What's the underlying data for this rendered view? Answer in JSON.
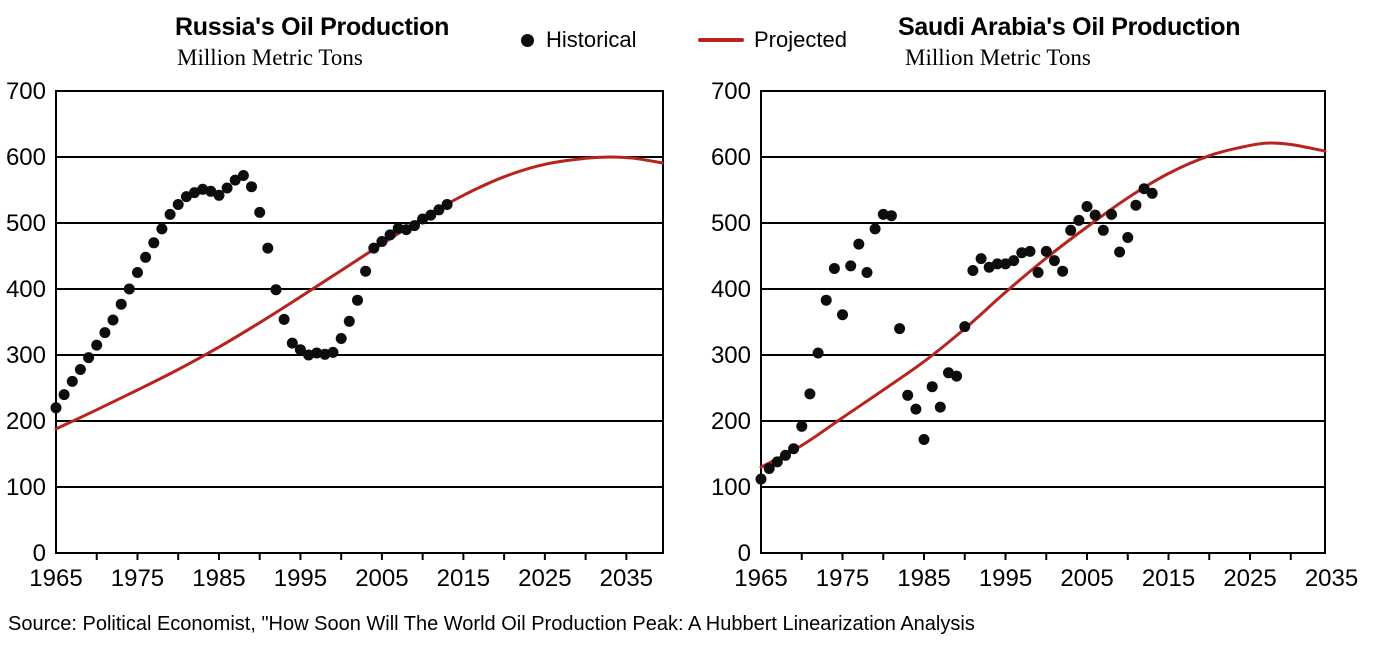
{
  "legend": {
    "historical_label": "Historical",
    "projected_label": "Projected"
  },
  "footer": {
    "source_text": "Source: Political Economist, \"How Soon Will The World Oil Production Peak: A Hubbert Linearization Analysis"
  },
  "colors": {
    "historical": "#0d0d0d",
    "projected": "#b7231d",
    "axis": "#000000",
    "background": "#ffffff"
  },
  "chart_data": [
    {
      "type": "scatter",
      "title": "Russia's Oil Production",
      "subtitle": "Million Metric Tons",
      "xlim": [
        1965,
        2039.5
      ],
      "ylim": [
        0,
        700
      ],
      "ytick_step": 100,
      "xtick_labels": [
        1965,
        1975,
        1985,
        1995,
        2005,
        2015,
        2025,
        2035
      ],
      "xtick_minor_step": 5,
      "grid": "horizontal",
      "legend_position": "top-center-shared",
      "series": [
        {
          "name": "Historical",
          "type": "scatter",
          "color": "#0d0d0d",
          "points": [
            [
              1965,
              220
            ],
            [
              1966,
              240
            ],
            [
              1967,
              260
            ],
            [
              1968,
              278
            ],
            [
              1969,
              296
            ],
            [
              1970,
              315
            ],
            [
              1971,
              334
            ],
            [
              1972,
              353
            ],
            [
              1973,
              377
            ],
            [
              1974,
              400
            ],
            [
              1975,
              425
            ],
            [
              1976,
              448
            ],
            [
              1977,
              470
            ],
            [
              1978,
              491
            ],
            [
              1979,
              513
            ],
            [
              1980,
              528
            ],
            [
              1981,
              540
            ],
            [
              1982,
              546
            ],
            [
              1983,
              551
            ],
            [
              1984,
              548
            ],
            [
              1985,
              542
            ],
            [
              1986,
              553
            ],
            [
              1987,
              565
            ],
            [
              1988,
              572
            ],
            [
              1989,
              555
            ],
            [
              1990,
              516
            ],
            [
              1991,
              462
            ],
            [
              1992,
              399
            ],
            [
              1993,
              354
            ],
            [
              1994,
              318
            ],
            [
              1995,
              308
            ],
            [
              1996,
              300
            ],
            [
              1997,
              303
            ],
            [
              1998,
              301
            ],
            [
              1999,
              304
            ],
            [
              2000,
              325
            ],
            [
              2001,
              351
            ],
            [
              2002,
              383
            ],
            [
              2003,
              427
            ],
            [
              2004,
              462
            ],
            [
              2005,
              472
            ],
            [
              2006,
              482
            ],
            [
              2007,
              492
            ],
            [
              2008,
              490
            ],
            [
              2009,
              496
            ],
            [
              2010,
              506
            ],
            [
              2011,
              512
            ],
            [
              2012,
              520
            ],
            [
              2013,
              528
            ]
          ]
        },
        {
          "name": "Projected",
          "type": "line",
          "color": "#b7231d",
          "points": [
            [
              1965,
              188
            ],
            [
              1970,
              217
            ],
            [
              1975,
              247
            ],
            [
              1980,
              278
            ],
            [
              1985,
              312
            ],
            [
              1990,
              349
            ],
            [
              1995,
              388
            ],
            [
              2000,
              428
            ],
            [
              2005,
              468
            ],
            [
              2010,
              507
            ],
            [
              2015,
              542
            ],
            [
              2020,
              570
            ],
            [
              2025,
              589
            ],
            [
              2030,
              598
            ],
            [
              2033,
              600
            ],
            [
              2036,
              598
            ],
            [
              2039.4,
              591
            ]
          ]
        }
      ]
    },
    {
      "type": "scatter",
      "title": "Saudi Arabia's Oil Production",
      "subtitle": "Million Metric Tons",
      "xlim": [
        1965,
        2034.2
      ],
      "ylim": [
        0,
        700
      ],
      "ytick_step": 100,
      "xtick_labels": [
        1965,
        1975,
        1985,
        1995,
        2005,
        2015,
        2025,
        2035
      ],
      "xtick_minor_step": 5,
      "grid": "horizontal",
      "legend_position": "top-center-shared",
      "series": [
        {
          "name": "Historical",
          "type": "scatter",
          "color": "#0d0d0d",
          "points": [
            [
              1965,
              112
            ],
            [
              1966,
              128
            ],
            [
              1967,
              138
            ],
            [
              1968,
              148
            ],
            [
              1969,
              158
            ],
            [
              1970,
              192
            ],
            [
              1971,
              241
            ],
            [
              1972,
              303
            ],
            [
              1973,
              383
            ],
            [
              1974,
              431
            ],
            [
              1975,
              361
            ],
            [
              1976,
              435
            ],
            [
              1977,
              468
            ],
            [
              1978,
              425
            ],
            [
              1979,
              491
            ],
            [
              1980,
              513
            ],
            [
              1981,
              511
            ],
            [
              1982,
              340
            ],
            [
              1983,
              239
            ],
            [
              1984,
              218
            ],
            [
              1985,
              172
            ],
            [
              1986,
              252
            ],
            [
              1987,
              221
            ],
            [
              1988,
              273
            ],
            [
              1989,
              268
            ],
            [
              1990,
              343
            ],
            [
              1991,
              428
            ],
            [
              1992,
              446
            ],
            [
              1993,
              433
            ],
            [
              1994,
              438
            ],
            [
              1995,
              438
            ],
            [
              1996,
              443
            ],
            [
              1997,
              455
            ],
            [
              1998,
              457
            ],
            [
              1999,
              425
            ],
            [
              2000,
              457
            ],
            [
              2001,
              443
            ],
            [
              2002,
              427
            ],
            [
              2003,
              489
            ],
            [
              2004,
              504
            ],
            [
              2005,
              525
            ],
            [
              2006,
              512
            ],
            [
              2007,
              489
            ],
            [
              2008,
              513
            ],
            [
              2009,
              456
            ],
            [
              2010,
              478
            ],
            [
              2011,
              527
            ],
            [
              2012,
              552
            ],
            [
              2013,
              545
            ]
          ]
        },
        {
          "name": "Projected",
          "type": "line",
          "color": "#b7231d",
          "points": [
            [
              1965,
              130
            ],
            [
              1970,
              163
            ],
            [
              1975,
              205
            ],
            [
              1980,
              247
            ],
            [
              1985,
              290
            ],
            [
              1990,
              340
            ],
            [
              1995,
              395
            ],
            [
              2000,
              447
            ],
            [
              2005,
              494
            ],
            [
              2010,
              538
            ],
            [
              2015,
              575
            ],
            [
              2020,
              602
            ],
            [
              2024,
              615
            ],
            [
              2027,
              621
            ],
            [
              2030,
              619
            ],
            [
              2034.2,
              609
            ]
          ]
        }
      ]
    }
  ]
}
